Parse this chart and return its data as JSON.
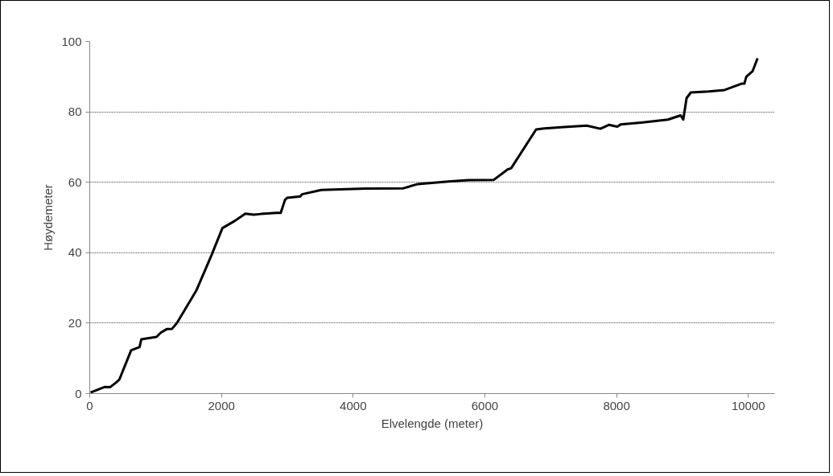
{
  "chart_data": {
    "type": "line",
    "xlabel": "Elvelengde (meter)",
    "ylabel": "Høydemeter",
    "x": [
      13,
      231,
      308,
      398,
      450,
      629,
      757,
      783,
      1014,
      1078,
      1168,
      1250,
      1322,
      1617,
      1849,
      2015,
      2200,
      2362,
      2490,
      2600,
      2837,
      2900,
      2965,
      3000,
      3200,
      3222,
      3517,
      3800,
      4200,
      4763,
      4981,
      5443,
      5751,
      6136,
      6341,
      6400,
      6778,
      6900,
      7200,
      7548,
      7754,
      7882,
      8010,
      8061,
      8400,
      8780,
      8973,
      9012,
      9063,
      9127,
      9400,
      9640,
      9897,
      9940,
      9970,
      10064,
      10141
    ],
    "series": [
      {
        "color": "#000000",
        "values": [
          0.3,
          1.9,
          1.8,
          3.1,
          4,
          12.3,
          13.2,
          15.4,
          16.1,
          17.3,
          18.3,
          18.4,
          20,
          29.2,
          39.3,
          47,
          49,
          51.1,
          50.8,
          51,
          51.3,
          51.3,
          55,
          55.6,
          56,
          56.6,
          57.8,
          58,
          58.2,
          58.3,
          59.5,
          60.2,
          60.6,
          60.7,
          63.6,
          64,
          75,
          75.3,
          75.7,
          76.1,
          75.2,
          76.3,
          75.8,
          76.4,
          77,
          77.8,
          79,
          77.8,
          83.9,
          85.5,
          85.8,
          86.2,
          88,
          88,
          90,
          91.5,
          95.2
        ]
      }
    ],
    "xlim": [
      0,
      10400
    ],
    "ylim": [
      0,
      100
    ],
    "xticks": [
      0,
      2000,
      4000,
      6000,
      8000,
      10000
    ],
    "yticks": [
      0,
      20,
      40,
      60,
      80,
      100
    ],
    "grid": "y",
    "marker": "none",
    "line_style": "solid"
  }
}
